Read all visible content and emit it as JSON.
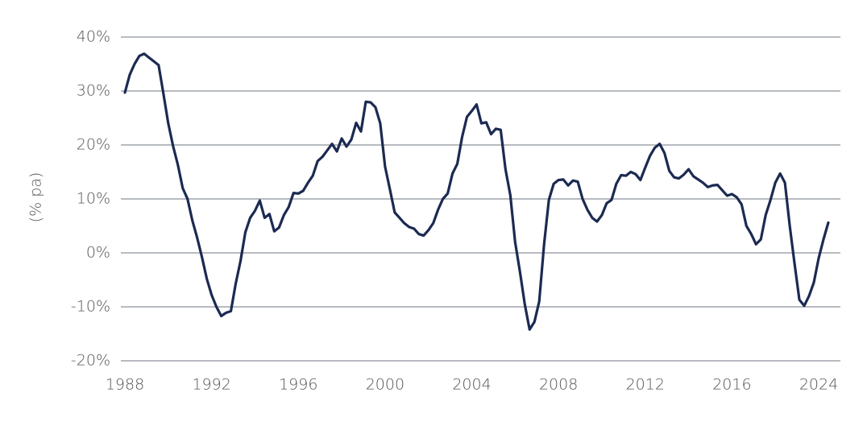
{
  "chart_data": {
    "type": "line",
    "y_label": "(% pa)",
    "categories": [
      "1988",
      null,
      null,
      null,
      null,
      null,
      null,
      null,
      null,
      null,
      null,
      null,
      null,
      null,
      null,
      null,
      null,
      null,
      "1992",
      null,
      null,
      null,
      null,
      null,
      null,
      null,
      null,
      null,
      null,
      null,
      null,
      null,
      null,
      null,
      null,
      null,
      "1996",
      null,
      null,
      null,
      null,
      null,
      null,
      null,
      null,
      null,
      null,
      null,
      null,
      null,
      null,
      null,
      null,
      null,
      "2000",
      null,
      null,
      null,
      null,
      null,
      null,
      null,
      null,
      null,
      null,
      null,
      null,
      null,
      null,
      null,
      null,
      null,
      "2004",
      null,
      null,
      null,
      null,
      null,
      null,
      null,
      null,
      null,
      null,
      null,
      null,
      null,
      null,
      null,
      null,
      null,
      "2008",
      null,
      null,
      null,
      null,
      null,
      null,
      null,
      null,
      null,
      null,
      null,
      null,
      null,
      null,
      null,
      null,
      null,
      "2012",
      null,
      null,
      null,
      null,
      null,
      null,
      null,
      null,
      null,
      null,
      null,
      null,
      null,
      null,
      null,
      null,
      null,
      "2016",
      null,
      null,
      null,
      null,
      null,
      null,
      null,
      null,
      null,
      null,
      null,
      null,
      null,
      null,
      null,
      null,
      null,
      "2024",
      null,
      null
    ],
    "series": [
      {
        "color": "#1c2a52",
        "values": [
          29.7,
          33,
          35,
          36.5,
          36.9,
          36.2,
          35.5,
          34.8,
          29.5,
          24,
          19.8,
          16.3,
          12,
          10,
          6,
          2.8,
          -0.8,
          -4.8,
          -7.8,
          -10,
          -11.7,
          -11.1,
          -10.8,
          -5.7,
          -1.5,
          3.8,
          6.5,
          7.8,
          9.7,
          6.5,
          7.2,
          4,
          4.7,
          7,
          8.5,
          11.1,
          11,
          11.5,
          13,
          14.3,
          17,
          17.8,
          19,
          20.2,
          18.8,
          21.2,
          19.7,
          21,
          24.1,
          22.5,
          28,
          27.9,
          27,
          24,
          16,
          11.8,
          7.5,
          6.5,
          5.5,
          4.8,
          4.5,
          3.5,
          3.2,
          4.2,
          5.5,
          8,
          10,
          11,
          14.7,
          16.5,
          21.5,
          25.2,
          26.3,
          27.5,
          24,
          24.2,
          22,
          23,
          22.8,
          15.5,
          10.7,
          2,
          -3.5,
          -9.5,
          -14.2,
          -12.8,
          -9,
          1.5,
          9.8,
          12.8,
          13.5,
          13.6,
          12.5,
          13.4,
          13.2,
          10,
          8,
          6.5,
          5.8,
          7,
          9.2,
          9.8,
          12.8,
          14.4,
          14.3,
          15,
          14.6,
          13.5,
          15.8,
          18,
          19.5,
          20.2,
          18.5,
          15.2,
          14,
          13.8,
          14.5,
          15.5,
          14.2,
          13.6,
          13,
          12.2,
          12.5,
          12.6,
          11.6,
          10.6,
          10.9,
          10.3,
          9,
          5,
          3.5,
          1.6,
          2.5,
          7,
          9.8,
          13,
          14.7,
          13,
          5,
          -2,
          -8.7,
          -9.8,
          -8,
          -5.5,
          -1,
          2.5,
          5.6
        ]
      }
    ],
    "ylim": [
      -20,
      40
    ],
    "yticks": [
      {
        "value": -20,
        "label": "-20%"
      },
      {
        "value": -10,
        "label": "-10%"
      },
      {
        "value": 0,
        "label": "0%"
      },
      {
        "value": 10,
        "label": "10%"
      },
      {
        "value": 20,
        "label": "20%"
      },
      {
        "value": 30,
        "label": "30%"
      },
      {
        "value": 40,
        "label": "40%"
      }
    ],
    "grid": true
  }
}
